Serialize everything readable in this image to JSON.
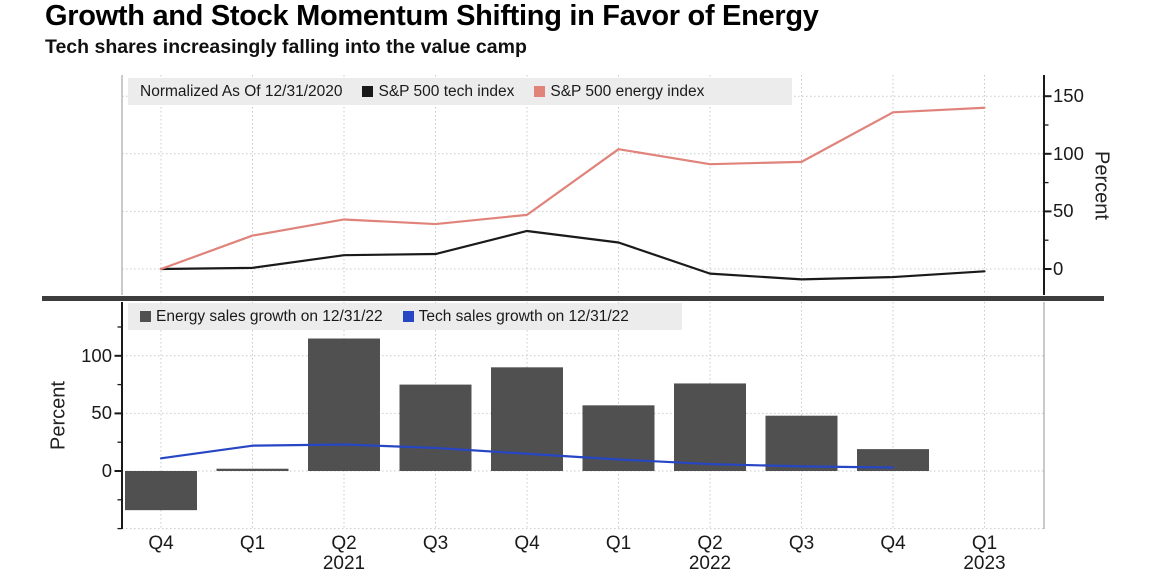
{
  "title": "Growth and Stock Momentum Shifting in Favor of Energy",
  "subtitle": "Tech shares increasingly falling into the value camp",
  "colors": {
    "tech_index_line": "#1a1a1a",
    "energy_index_line": "#e0837b",
    "energy_bars": "#505050",
    "tech_sales_line": "#2746c4",
    "legend_background": "#ececec",
    "divider": "#3d3d3d",
    "grid": "#c9c9c9",
    "axis_dark": "#1a1a1a",
    "axis_light": "#a8a8a8"
  },
  "x_axis": {
    "quarter_labels": [
      "Q4",
      "Q1",
      "Q2",
      "Q3",
      "Q4",
      "Q1",
      "Q2",
      "Q3",
      "Q4",
      "Q1"
    ],
    "year_labels": [
      {
        "text": "2021",
        "index": 2
      },
      {
        "text": "2022",
        "index": 6
      },
      {
        "text": "2023",
        "index": 9
      }
    ]
  },
  "chart_data": [
    {
      "type": "line",
      "panel": "top",
      "note": "Normalized As Of 12/31/2020",
      "categories": [
        "Q4 2020",
        "Q1 2021",
        "Q2 2021",
        "Q3 2021",
        "Q4 2021",
        "Q1 2022",
        "Q2 2022",
        "Q3 2022",
        "Q4 2022",
        "Q1 2023"
      ],
      "series": [
        {
          "name": "S&P 500 tech index",
          "color": "#1a1a1a",
          "values": [
            0,
            1,
            12,
            13,
            33,
            23,
            -4,
            -9,
            -7,
            -2
          ]
        },
        {
          "name": "S&P 500 energy index",
          "color": "#e0837b",
          "values": [
            0,
            29,
            43,
            39,
            47,
            104,
            91,
            93,
            136,
            140
          ]
        }
      ],
      "ylabel": "Percent",
      "yaxis_side": "right",
      "yticks": [
        0,
        50,
        100,
        150
      ],
      "minor_ticks": [
        25,
        75,
        125
      ],
      "ylim": [
        -23,
        169
      ],
      "grid": true,
      "legend_position": "top-left"
    },
    {
      "type": "bar-line",
      "panel": "bottom",
      "categories": [
        "Q4 2020",
        "Q1 2021",
        "Q2 2021",
        "Q3 2021",
        "Q4 2021",
        "Q1 2022",
        "Q2 2022",
        "Q3 2022",
        "Q4 2022",
        "Q1 2023"
      ],
      "series": [
        {
          "name": "Energy sales growth on 12/31/22",
          "kind": "bar",
          "color": "#505050",
          "values": [
            -34,
            2,
            115,
            75,
            90,
            57,
            76,
            48,
            19,
            null
          ]
        },
        {
          "name": "Tech sales growth on 12/31/22",
          "kind": "line",
          "color": "#2746c4",
          "values": [
            11,
            22,
            23,
            20,
            15,
            10,
            6,
            4,
            3,
            null
          ]
        }
      ],
      "ylabel": "Percent",
      "yaxis_side": "left",
      "yticks": [
        0,
        50,
        100
      ],
      "minor_ticks": [
        -50,
        -25,
        25,
        75,
        125
      ],
      "ylim": [
        -50,
        147
      ],
      "grid": true,
      "legend_position": "top-left"
    }
  ]
}
